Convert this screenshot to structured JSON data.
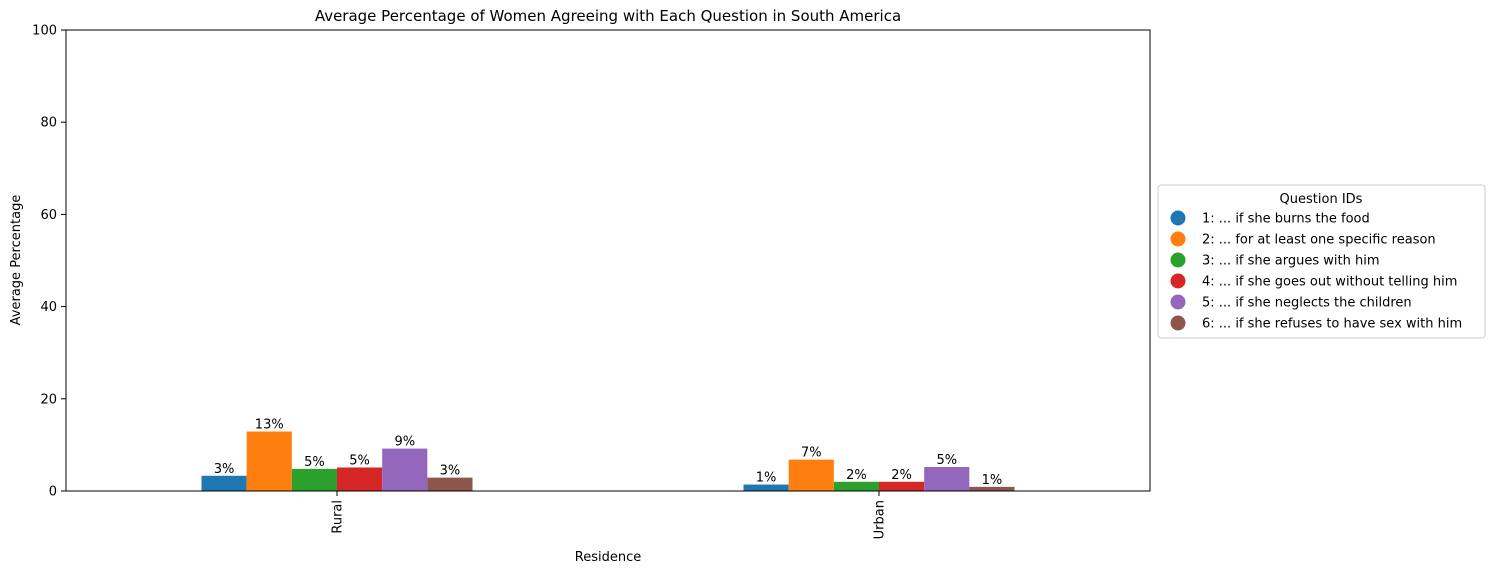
{
  "chart_data": {
    "type": "bar",
    "title": "Average Percentage of Women Agreeing with Each Question in South America",
    "xlabel": "Residence",
    "ylabel": "Average Percentage",
    "ylim": [
      0,
      100
    ],
    "yticks": [
      0,
      20,
      40,
      60,
      80,
      100
    ],
    "categories": [
      "Rural",
      "Urban"
    ],
    "legend": {
      "title": "Question IDs",
      "placement": "center-right outside"
    },
    "grid": false,
    "series": [
      {
        "name": "1: ... if she burns the food",
        "color": "#1f77b4",
        "values": [
          3.3,
          1.4
        ],
        "labels": [
          "3%",
          "1%"
        ]
      },
      {
        "name": "2: ... for at least one specific reason",
        "color": "#ff7f0e",
        "values": [
          12.9,
          6.8
        ],
        "labels": [
          "13%",
          "7%"
        ]
      },
      {
        "name": "3: ... if she argues with him",
        "color": "#2ca02c",
        "values": [
          4.8,
          2.0
        ],
        "labels": [
          "5%",
          "2%"
        ]
      },
      {
        "name": "4: ... if she goes out without telling him",
        "color": "#d62728",
        "values": [
          5.1,
          2.0
        ],
        "labels": [
          "5%",
          "2%"
        ]
      },
      {
        "name": "5: ... if she neglects the children",
        "color": "#9467bd",
        "values": [
          9.2,
          5.2
        ],
        "labels": [
          "9%",
          "5%"
        ]
      },
      {
        "name": "6: ... if she refuses to have sex with him",
        "color": "#8c564b",
        "values": [
          2.9,
          0.9
        ],
        "labels": [
          "3%",
          "1%"
        ]
      }
    ]
  }
}
